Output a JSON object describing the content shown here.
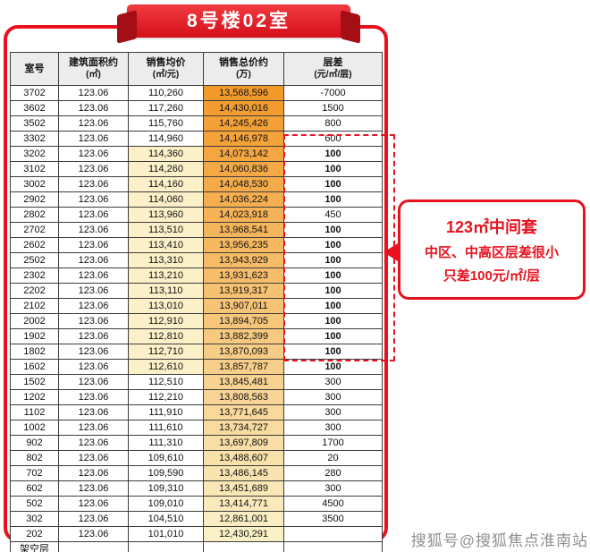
{
  "ribbon": {
    "title": "8号楼02室"
  },
  "table": {
    "headers": [
      {
        "line1": "室号",
        "line2": ""
      },
      {
        "line1": "建筑面积约",
        "line2": "(㎡)"
      },
      {
        "line1": "销售均价",
        "line2": "(㎡/元)"
      },
      {
        "line1": "销售总价约",
        "line2": "(万)"
      },
      {
        "line1": "层差",
        "line2": "(元/㎡/层)"
      }
    ],
    "rows": [
      [
        "3702",
        "123.06",
        "110,260",
        "13,568,596",
        "-7000"
      ],
      [
        "3602",
        "123.06",
        "117,260",
        "14,430,016",
        "1500"
      ],
      [
        "3502",
        "123.06",
        "115,760",
        "14,245,426",
        "800"
      ],
      [
        "3302",
        "123.06",
        "114,960",
        "14,146,978",
        "600"
      ],
      [
        "3202",
        "123.06",
        "114,360",
        "14,073,142",
        "100"
      ],
      [
        "3102",
        "123.06",
        "114,260",
        "14,060,836",
        "100"
      ],
      [
        "3002",
        "123.06",
        "114,160",
        "14,048,530",
        "100"
      ],
      [
        "2902",
        "123.06",
        "114,060",
        "14,036,224",
        "100"
      ],
      [
        "2802",
        "123.06",
        "113,960",
        "14,023,918",
        "450"
      ],
      [
        "2702",
        "123.06",
        "113,510",
        "13,968,541",
        "100"
      ],
      [
        "2602",
        "123.06",
        "113,410",
        "13,956,235",
        "100"
      ],
      [
        "2502",
        "123.06",
        "113,310",
        "13,943,929",
        "100"
      ],
      [
        "2302",
        "123.06",
        "113,210",
        "13,931,623",
        "100"
      ],
      [
        "2202",
        "123.06",
        "113,110",
        "13,919,317",
        "100"
      ],
      [
        "2102",
        "123.06",
        "113,010",
        "13,907,011",
        "100"
      ],
      [
        "2002",
        "123.06",
        "112,910",
        "13,894,705",
        "100"
      ],
      [
        "1902",
        "123.06",
        "112,810",
        "13,882,399",
        "100"
      ],
      [
        "1802",
        "123.06",
        "112,710",
        "13,870,093",
        "100"
      ],
      [
        "1602",
        "123.06",
        "112,610",
        "13,857,787",
        "100"
      ],
      [
        "1502",
        "123.06",
        "112,510",
        "13,845,481",
        "300"
      ],
      [
        "1202",
        "123.06",
        "112,210",
        "13,808,563",
        "300"
      ],
      [
        "1102",
        "123.06",
        "111,910",
        "13,771,645",
        "300"
      ],
      [
        "1002",
        "123.06",
        "111,610",
        "13,734,727",
        "300"
      ],
      [
        "902",
        "123.06",
        "111,310",
        "13,697,809",
        "1700"
      ],
      [
        "802",
        "123.06",
        "109,610",
        "13,488,607",
        "20"
      ],
      [
        "702",
        "123.06",
        "109,590",
        "13,486,145",
        "280"
      ],
      [
        "602",
        "123.06",
        "109,310",
        "13,451,689",
        "300"
      ],
      [
        "502",
        "123.06",
        "109,010",
        "13,414,771",
        "4500"
      ],
      [
        "302",
        "123.06",
        "104,510",
        "12,861,001",
        "3500"
      ],
      [
        "202",
        "123.06",
        "101,010",
        "12,430,291",
        ""
      ]
    ],
    "footer_row": "架空层"
  },
  "highlights": {
    "bold_diff_value": "100",
    "unit_tint_from_index": 4,
    "unit_tint_to_index": 18
  },
  "callout": {
    "line1": "123㎡中间套",
    "line2": "中区、中高区层差很小",
    "line3": "只差100元/㎡/层"
  },
  "watermark": "搜狐号@搜狐焦点淮南站",
  "colors": {
    "accent_red": "#e8111d",
    "header_bg": "#ececec",
    "total_col_top": "#f39a2b",
    "total_col_bottom": "#faf0c6",
    "unit_col_tint": "#fbf0c8"
  }
}
